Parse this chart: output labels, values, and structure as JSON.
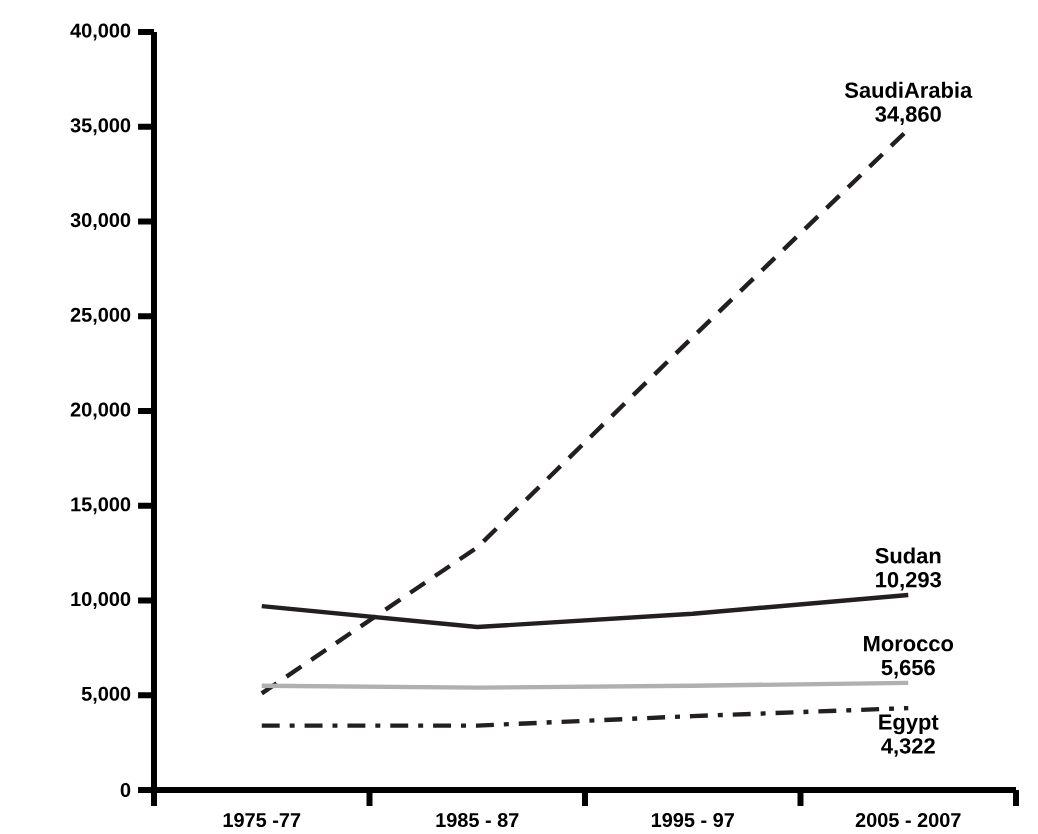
{
  "chart_data": {
    "type": "line",
    "categories": [
      "1975 -77",
      "1985 - 87",
      "1995 - 97",
      "2005 - 2007"
    ],
    "ylim": [
      0,
      40000
    ],
    "yticks": [
      {
        "value": 0,
        "label": "0"
      },
      {
        "value": 5000,
        "label": "5,000"
      },
      {
        "value": 10000,
        "label": "10,000"
      },
      {
        "value": 15000,
        "label": "15,000"
      },
      {
        "value": 20000,
        "label": "20,000"
      },
      {
        "value": 25000,
        "label": "25,000"
      },
      {
        "value": 30000,
        "label": "30,000"
      },
      {
        "value": 35000,
        "label": "35,000"
      },
      {
        "value": 40000,
        "label": "40,000"
      }
    ],
    "grid": false,
    "legend": false,
    "marker": "none",
    "series": [
      {
        "name": "SaudiArabia",
        "color": "#231f20",
        "line_style": "dashed",
        "values": [
          5100,
          12800,
          23900,
          34860
        ],
        "value_labels": [
          null,
          null,
          null,
          "34,860"
        ]
      },
      {
        "name": "Sudan",
        "color": "#231f20",
        "line_style": "solid",
        "values": [
          9700,
          8600,
          9300,
          10293
        ],
        "value_labels": [
          null,
          null,
          null,
          "10,293"
        ]
      },
      {
        "name": "Morocco",
        "color": "#b0b0b0",
        "line_style": "solid",
        "values": [
          5500,
          5400,
          5500,
          5656
        ],
        "value_labels": [
          null,
          null,
          null,
          "5,656"
        ]
      },
      {
        "name": "Egypt",
        "color": "#231f20",
        "line_style": "dashdot",
        "values": [
          3400,
          3400,
          3900,
          4322
        ],
        "value_labels": [
          null,
          null,
          null,
          "4,322"
        ]
      }
    ]
  }
}
